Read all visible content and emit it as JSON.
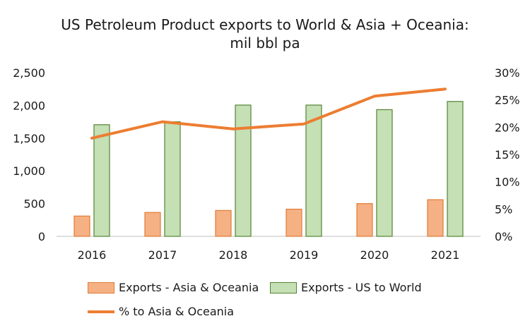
{
  "chart_data": {
    "type": "bar",
    "title_line1": "US Petroleum Product exports to World & Asia + Oceania:",
    "title_line2": "mil bbl pa",
    "categories": [
      "2016",
      "2017",
      "2018",
      "2019",
      "2020",
      "2021"
    ],
    "y_left": {
      "ylim": [
        0,
        2500
      ],
      "ticks": [
        "0",
        "500",
        "1,000",
        "1,500",
        "2,000",
        "2,500"
      ]
    },
    "y_right": {
      "ylim": [
        0,
        30
      ],
      "ticks": [
        "0%",
        "5%",
        "10%",
        "15%",
        "20%",
        "25%",
        "30%"
      ]
    },
    "series": [
      {
        "name": "Exports - Asia & Oceania",
        "type": "bar",
        "axis": "left",
        "values": [
          310,
          365,
          395,
          415,
          500,
          560
        ],
        "fill": "#f5b183",
        "stroke": "#e07b39"
      },
      {
        "name": "Exports - US to World",
        "type": "bar",
        "axis": "left",
        "values": [
          1705,
          1750,
          2005,
          2005,
          1935,
          2060
        ],
        "fill": "#c5e0b4",
        "stroke": "#548235"
      },
      {
        "name": "% to Asia & Oceania",
        "type": "line",
        "axis": "right",
        "values": [
          18.0,
          21.0,
          19.7,
          20.6,
          25.7,
          27.0
        ],
        "stroke": "#ed7d31"
      }
    ],
    "grid": true,
    "legend_position": "bottom"
  }
}
